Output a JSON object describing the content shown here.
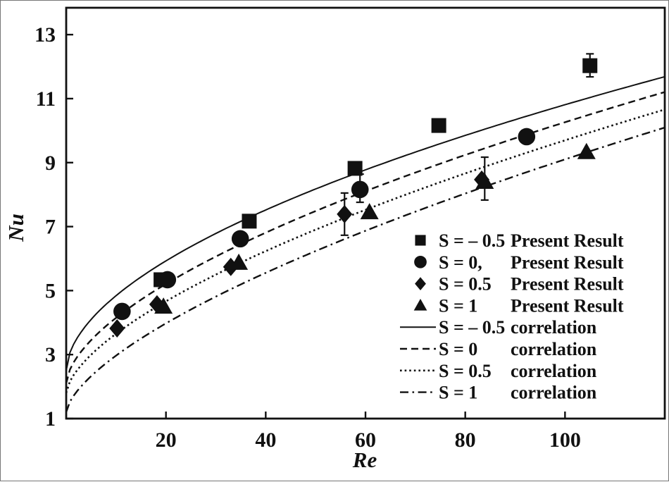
{
  "figure": {
    "background": "#ffffff",
    "ink_color": "#111111"
  },
  "chart_data": {
    "type": "scatter",
    "title": "",
    "xlabel": "Re",
    "ylabel": "Nu",
    "xlim": [
      0,
      120
    ],
    "ylim": [
      1,
      13.84
    ],
    "x_ticks": [
      20,
      40,
      60,
      80,
      100
    ],
    "y_ticks": [
      1,
      3,
      5,
      7,
      9,
      11,
      13
    ],
    "grid": false,
    "legend_position": "inside-lower-right",
    "series": [
      {
        "name": "S = – 0.5  Present Result",
        "legend_s": "S = – 0.5",
        "legend_desc": "Present Result",
        "kind": "scatter",
        "marker": "square",
        "points": [
          {
            "re": 19.0,
            "nu": 5.34
          },
          {
            "re": 36.7,
            "nu": 7.17
          },
          {
            "re": 57.9,
            "nu": 8.82
          },
          {
            "re": 74.7,
            "nu": 10.16
          },
          {
            "re": 105.0,
            "nu": 12.03,
            "err_plus": 0.37,
            "err_minus": 0.35
          }
        ]
      },
      {
        "name": "S = 0,  Present Result",
        "legend_s": "S = 0,",
        "legend_desc": "Present Result",
        "kind": "scatter",
        "marker": "circle",
        "points": [
          {
            "re": 11.2,
            "nu": 4.35
          },
          {
            "re": 20.3,
            "nu": 5.34
          },
          {
            "re": 34.9,
            "nu": 6.62
          },
          {
            "re": 58.9,
            "nu": 8.16,
            "err_plus": 0.48,
            "err_minus": 0.4
          },
          {
            "re": 92.3,
            "nu": 9.81
          }
        ]
      },
      {
        "name": "S = 0.5  Present Result",
        "legend_s": "S = 0.5",
        "legend_desc": "Present Result",
        "kind": "scatter",
        "marker": "diamond",
        "points": [
          {
            "re": 10.2,
            "nu": 3.82
          },
          {
            "re": 18.2,
            "nu": 4.57
          },
          {
            "re": 33.0,
            "nu": 5.74
          },
          {
            "re": 55.8,
            "nu": 7.39,
            "err_plus": 0.66,
            "err_minus": 0.66
          },
          {
            "re": 83.3,
            "nu": 8.47
          }
        ]
      },
      {
        "name": "S = 1  Present Result",
        "legend_s": "S = 1",
        "legend_desc": "Present Result",
        "kind": "scatter",
        "marker": "triangle",
        "points": [
          {
            "re": 19.5,
            "nu": 4.5
          },
          {
            "re": 34.6,
            "nu": 5.87
          },
          {
            "re": 60.8,
            "nu": 7.45
          },
          {
            "re": 83.9,
            "nu": 8.4,
            "err_plus": 0.77,
            "err_minus": 0.57
          },
          {
            "re": 104.3,
            "nu": 9.33
          }
        ]
      },
      {
        "name": "S = – 0.5  correlation",
        "legend_s": "S = – 0.5",
        "legend_desc": "correlation",
        "kind": "line",
        "line_style": "solid",
        "fit": {
          "a": 2.5,
          "b": 0.66,
          "c": 0.55
        }
      },
      {
        "name": "S = 0  correlation",
        "legend_s": "S = 0",
        "legend_desc": "correlation",
        "kind": "line",
        "line_style": "dashed",
        "fit": {
          "a": 2.1,
          "b": 0.515,
          "c": 0.6
        }
      },
      {
        "name": "S = 0.5  correlation",
        "legend_s": "S = 0.5",
        "legend_desc": "correlation",
        "kind": "line",
        "line_style": "dotted",
        "fit": {
          "a": 1.8,
          "b": 0.434,
          "c": 0.63
        }
      },
      {
        "name": "S = 1  correlation",
        "legend_s": "S = 1",
        "legend_desc": "correlation",
        "kind": "line",
        "line_style": "dashdot",
        "fit": {
          "a": 1.2,
          "b": 0.396,
          "c": 0.65
        }
      }
    ]
  }
}
